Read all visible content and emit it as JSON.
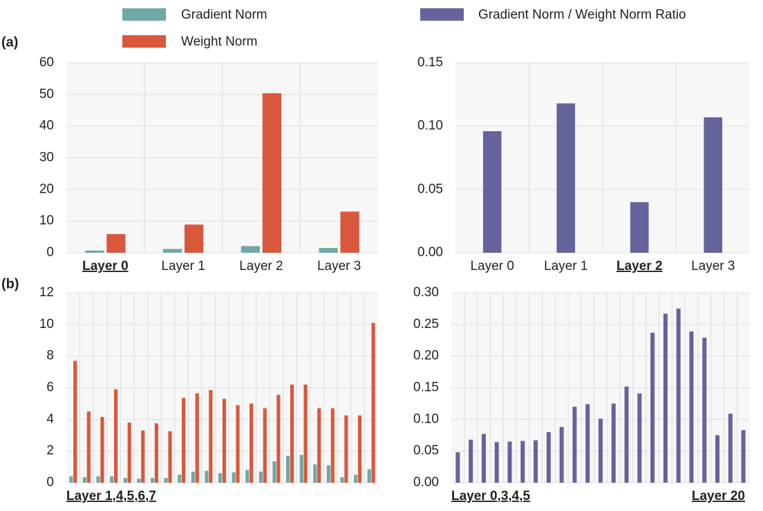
{
  "panel_labels": [
    "(a)",
    "(b)"
  ],
  "chart_data": [
    {
      "type": "bar",
      "categories": [
        "Layer 0",
        "Layer 1",
        "Layer 2",
        "Layer 3"
      ],
      "highlight_index": 0,
      "series": [
        {
          "name": "Gradient Norm",
          "color": "#6fa8a6",
          "values": [
            0.7,
            1.2,
            2.1,
            1.5
          ]
        },
        {
          "name": "Weight Norm",
          "color": "#d9583b",
          "values": [
            5.9,
            8.9,
            50.4,
            13.0
          ]
        }
      ],
      "ylim": [
        0,
        60
      ],
      "yticks": [
        0,
        10,
        20,
        30,
        40,
        50,
        60
      ],
      "grid": true
    },
    {
      "type": "bar",
      "categories": [
        "Layer 0",
        "Layer 1",
        "Layer 2",
        "Layer 3"
      ],
      "highlight_index": 2,
      "series": [
        {
          "name": "Gradient Norm / Weight Norm Ratio",
          "color": "#65639c",
          "values": [
            0.096,
            0.118,
            0.04,
            0.107
          ]
        }
      ],
      "ylim": [
        0,
        0.15
      ],
      "yticks": [
        {
          "value": 0,
          "label": "0.00"
        },
        {
          "value": 0.05,
          "label": "0.05"
        },
        {
          "value": 0.1,
          "label": "0.10"
        },
        {
          "value": 0.15,
          "label": "0.15"
        }
      ],
      "grid": true
    },
    {
      "type": "bar",
      "categories": [
        null,
        null,
        null,
        null,
        null,
        null,
        null,
        null,
        null,
        null,
        null,
        null,
        null,
        null,
        null,
        null,
        null,
        null,
        null,
        null,
        null,
        null,
        null
      ],
      "annotations": [
        "Layer 1,4,5,6,7"
      ],
      "series": [
        {
          "name": "Gradient Norm",
          "color": "#6fa8a6",
          "values": [
            0.4,
            0.35,
            0.4,
            0.4,
            0.3,
            0.25,
            0.3,
            0.3,
            0.5,
            0.7,
            0.75,
            0.6,
            0.65,
            0.8,
            0.7,
            1.35,
            1.7,
            1.75,
            1.15,
            1.1,
            0.35,
            0.5,
            0.85
          ]
        },
        {
          "name": "Weight Norm",
          "color": "#d9583b",
          "values": [
            7.7,
            4.5,
            4.15,
            5.9,
            3.8,
            3.3,
            3.75,
            3.25,
            5.35,
            5.65,
            5.85,
            5.3,
            4.9,
            5.0,
            4.7,
            5.55,
            6.2,
            6.2,
            4.7,
            4.7,
            4.25,
            4.25,
            10.1
          ]
        }
      ],
      "ylim": [
        0,
        12
      ],
      "yticks": [
        0,
        2,
        4,
        6,
        8,
        10,
        12
      ],
      "grid": true
    },
    {
      "type": "bar",
      "categories": [
        null,
        null,
        null,
        null,
        null,
        null,
        null,
        null,
        null,
        null,
        null,
        null,
        null,
        null,
        null,
        null,
        null,
        null,
        null,
        null,
        null,
        null,
        null
      ],
      "annotations": [
        "Layer 0,3,4,5",
        "Layer 20"
      ],
      "series": [
        {
          "name": "Gradient Norm / Weight Norm Ratio",
          "color": "#65639c",
          "values": [
            0.048,
            0.068,
            0.077,
            0.064,
            0.065,
            0.066,
            0.067,
            0.08,
            0.088,
            0.12,
            0.124,
            0.101,
            0.125,
            0.152,
            0.141,
            0.237,
            0.267,
            0.275,
            0.239,
            0.229,
            0.075,
            0.109,
            0.083
          ]
        }
      ],
      "ylim": [
        0,
        0.3
      ],
      "yticks": [
        {
          "value": 0,
          "label": "0.00"
        },
        {
          "value": 0.05,
          "label": "0.05"
        },
        {
          "value": 0.1,
          "label": "0.10"
        },
        {
          "value": 0.15,
          "label": "0.15"
        },
        {
          "value": 0.2,
          "label": "0.20"
        },
        {
          "value": 0.25,
          "label": "0.25"
        },
        {
          "value": 0.3,
          "label": "0.30"
        }
      ],
      "grid": true
    }
  ]
}
